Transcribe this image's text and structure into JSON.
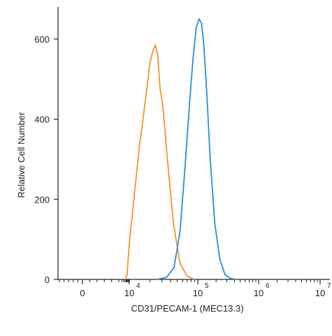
{
  "chart_data": {
    "type": "line",
    "xlabel": "CD31/PECAM-1 (MEC13.3)",
    "ylabel": "Relative Cell Number",
    "x_scale": "biexponential",
    "x_ticks": [
      {
        "value": 0,
        "base": "0",
        "exp": ""
      },
      {
        "value": 10000,
        "base": "10",
        "exp": "4"
      },
      {
        "value": 100000,
        "base": "10",
        "exp": "5"
      },
      {
        "value": 1000000,
        "base": "10",
        "exp": "6"
      },
      {
        "value": 10000000,
        "base": "10",
        "exp": "7"
      }
    ],
    "ylim": [
      0,
      680
    ],
    "y_ticks": [
      0,
      200,
      400,
      600
    ],
    "series": [
      {
        "color": "#f0962e",
        "x": [
          4000,
          6000,
          10000,
          14000,
          17000,
          20000,
          22000,
          24000,
          26000,
          28000,
          31000,
          36000,
          44000,
          55000,
          70000,
          90000
        ],
        "y": [
          0,
          10,
          90,
          330,
          440,
          540,
          570,
          585,
          560,
          480,
          430,
          300,
          140,
          40,
          8,
          0
        ]
      },
      {
        "color": "#2b8fd6",
        "x": [
          25000,
          35000,
          45000,
          55000,
          65000,
          75000,
          85000,
          95000,
          105000,
          115000,
          125000,
          140000,
          160000,
          190000,
          230000,
          280000,
          340000,
          420000
        ],
        "y": [
          0,
          5,
          30,
          120,
          280,
          430,
          550,
          630,
          650,
          640,
          590,
          470,
          300,
          140,
          50,
          12,
          3,
          0
        ]
      }
    ]
  }
}
